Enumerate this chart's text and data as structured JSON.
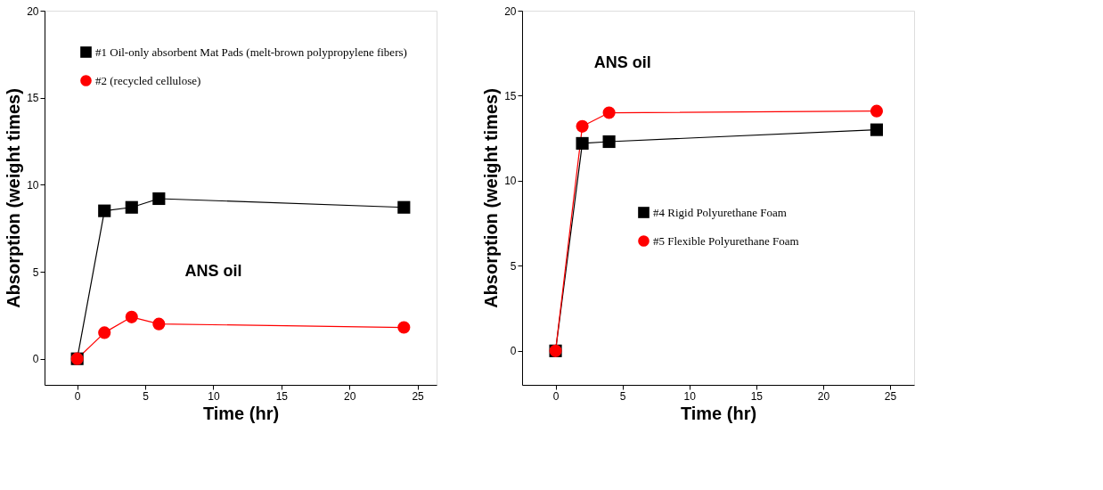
{
  "chart_data": [
    {
      "type": "line",
      "xlabel": "Time (hr)",
      "ylabel": "Absorption (weight times)",
      "annotations": [
        "ANS oil"
      ],
      "xlim": [
        -2.4,
        26.4
      ],
      "xticks": [
        0,
        5,
        10,
        15,
        20,
        25
      ],
      "ylim": [
        -1.5,
        20
      ],
      "yticks": [
        0,
        5,
        10,
        15,
        20
      ],
      "grid": false,
      "legend": "top",
      "line_style": "solid",
      "series": [
        {
          "name": "#1 Oil-only absorbent Mat Pads (melt-brown polypropylene fibers)",
          "color": "#000000",
          "marker": "square",
          "x": [
            0,
            2,
            4,
            6,
            24
          ],
          "values": [
            0,
            8.5,
            8.7,
            9.2,
            8.7
          ]
        },
        {
          "name": "#2 (recycled cellulose)",
          "color": "#ff0000",
          "marker": "circle",
          "x": [
            0,
            2,
            4,
            6,
            24
          ],
          "values": [
            0,
            1.5,
            2.4,
            2.0,
            1.8
          ]
        }
      ]
    },
    {
      "type": "line",
      "xlabel": "Time (hr)",
      "ylabel": "Absorption (weight times)",
      "annotations": [
        "ANS oil"
      ],
      "xlim": [
        -2.5,
        26.8
      ],
      "xticks": [
        0,
        5,
        10,
        15,
        20,
        25
      ],
      "ylim": [
        -2,
        20
      ],
      "yticks": [
        0,
        5,
        10,
        15,
        20
      ],
      "grid": false,
      "legend": "right",
      "line_style": "solid",
      "series": [
        {
          "name": "#4 Rigid Polyurethane Foam",
          "color": "#000000",
          "marker": "square",
          "x": [
            0,
            2,
            4,
            24
          ],
          "values": [
            0,
            12.2,
            12.3,
            13.0
          ]
        },
        {
          "name": "#5 Flexible Polyurethane Foam",
          "color": "#ff0000",
          "marker": "circle",
          "x": [
            0,
            2,
            4,
            24
          ],
          "values": [
            0,
            13.2,
            14.0,
            14.1
          ]
        }
      ]
    }
  ]
}
